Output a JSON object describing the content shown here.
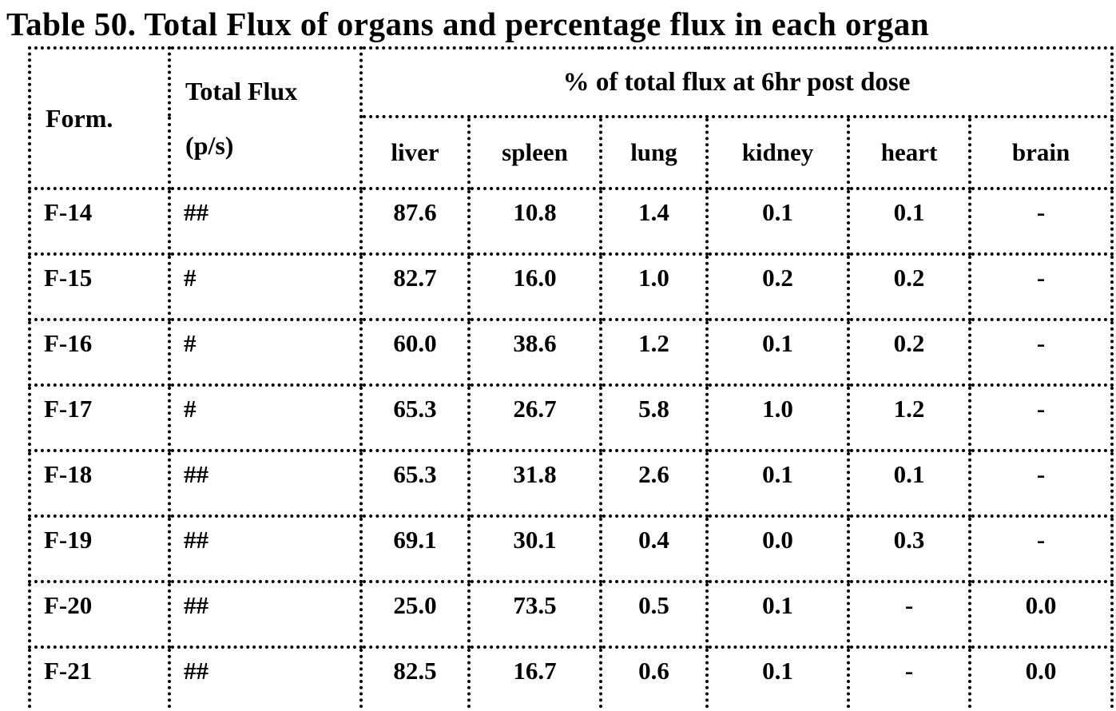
{
  "title": "Table 50. Total Flux of organs and percentage flux in each organ",
  "table": {
    "form_header": "Form.",
    "total_flux_header_line1": "Total Flux",
    "total_flux_header_line2": "(p/s)",
    "group_header": "% of total flux at 6hr post dose",
    "organ_headers": [
      "liver",
      "spleen",
      "lung",
      "kidney",
      "heart",
      "brain"
    ],
    "rows": [
      {
        "form": "F-14",
        "total_flux": "##",
        "values": [
          "87.6",
          "10.8",
          "1.4",
          "0.1",
          "0.1",
          "-"
        ]
      },
      {
        "form": "F-15",
        "total_flux": "#",
        "values": [
          "82.7",
          "16.0",
          "1.0",
          "0.2",
          "0.2",
          "-"
        ]
      },
      {
        "form": "F-16",
        "total_flux": "#",
        "values": [
          "60.0",
          "38.6",
          "1.2",
          "0.1",
          "0.2",
          "-"
        ]
      },
      {
        "form": "F-17",
        "total_flux": "#",
        "values": [
          "65.3",
          "26.7",
          "5.8",
          "1.0",
          "1.2",
          "-"
        ]
      },
      {
        "form": "F-18",
        "total_flux": "##",
        "values": [
          "65.3",
          "31.8",
          "2.6",
          "0.1",
          "0.1",
          "-"
        ]
      },
      {
        "form": "F-19",
        "total_flux": "##",
        "values": [
          "69.1",
          "30.1",
          "0.4",
          "0.0",
          "0.3",
          "-"
        ]
      },
      {
        "form": "F-20",
        "total_flux": "##",
        "values": [
          "25.0",
          "73.5",
          "0.5",
          "0.1",
          "-",
          "0.0"
        ]
      },
      {
        "form": "F-21",
        "total_flux": "##",
        "values": [
          "82.5",
          "16.7",
          "0.6",
          "0.1",
          "-",
          "0.0"
        ]
      }
    ],
    "colors": {
      "text": "#000000",
      "background": "#ffffff",
      "border": "#000000"
    }
  }
}
